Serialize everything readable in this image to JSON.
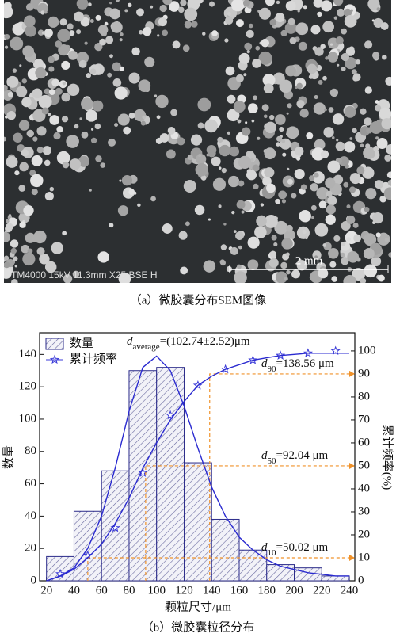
{
  "image": {
    "info": "TM4000 15kV 11.3mm X25 BSE H",
    "scale_bar": "2 mm",
    "caption": "（a）微胶囊分布SEM图像"
  },
  "chart_data": {
    "type": "histogram",
    "caption": "（b）微胶囊粒径分布",
    "x_label": "颗粒尺寸/μm",
    "y_label": "数量",
    "y2_label": "累计频率(%)",
    "bins": [
      20,
      40,
      60,
      80,
      100,
      120,
      140,
      160,
      180,
      200,
      220,
      240
    ],
    "series": [
      {
        "name": "数量",
        "color": "#2b2b8a",
        "values": [
          15,
          43,
          68,
          130,
          132,
          73,
          38,
          19,
          10,
          8,
          3
        ]
      },
      {
        "name": "累计频率",
        "type": "scatter",
        "axis": "y2",
        "color": "#3a3ad8",
        "x": [
          30,
          50,
          70,
          90,
          110,
          130,
          150,
          170,
          190,
          210,
          230
        ],
        "values": [
          3,
          11,
          23,
          47,
          72,
          85,
          92,
          96,
          98,
          99,
          100
        ]
      }
    ],
    "fit_curves": [
      {
        "color": "#2a2ad0",
        "x": [
          20,
          30,
          40,
          50,
          60,
          70,
          80,
          90,
          100,
          110,
          120,
          130,
          140,
          150,
          160,
          170,
          180,
          190,
          200,
          210,
          220,
          230,
          240
        ],
        "values": [
          0,
          3,
          8,
          20,
          40,
          70,
          105,
          132,
          139,
          130,
          108,
          82,
          58,
          40,
          27,
          19,
          13,
          9,
          7,
          5,
          4,
          3,
          3
        ]
      },
      {
        "color": "#2a2ad0",
        "axis": "y2",
        "x": [
          20,
          30,
          40,
          50,
          60,
          70,
          80,
          90,
          100,
          110,
          120,
          130,
          140,
          150,
          160,
          170,
          180,
          190,
          200,
          210,
          220,
          230,
          240
        ],
        "values": [
          0,
          2,
          5,
          10,
          16,
          25,
          36,
          49,
          60,
          70,
          78,
          85,
          89,
          92,
          94,
          96,
          97,
          98,
          98.5,
          99,
          99,
          99,
          99
        ]
      }
    ],
    "reference_lines": [
      {
        "x": 50.02,
        "y2": 10,
        "label": [
          "d",
          "10",
          "=50.02 μm"
        ]
      },
      {
        "x": 92.04,
        "y2": 50,
        "label": [
          "d",
          "50",
          "=92.04 μm"
        ]
      },
      {
        "x": 138.56,
        "y2": 90,
        "label": [
          "d",
          "90",
          "=138.56 μm"
        ]
      }
    ],
    "reference_color": "#f0922a",
    "annotations": [
      {
        "parts": [
          "d",
          "average",
          "=(102.74±2.52)μm"
        ]
      }
    ],
    "xlim": [
      15,
      244
    ],
    "ylim": [
      0,
      153.4
    ],
    "y2lim": [
      0,
      107.9
    ],
    "xticks": [
      20,
      40,
      60,
      80,
      100,
      120,
      140,
      160,
      180,
      200,
      220,
      240
    ],
    "yticks": [
      0,
      20,
      40,
      60,
      80,
      100,
      120,
      140
    ],
    "y2ticks": [
      0,
      10,
      20,
      30,
      40,
      50,
      60,
      70,
      80,
      90,
      100
    ],
    "legend": "top-left"
  }
}
